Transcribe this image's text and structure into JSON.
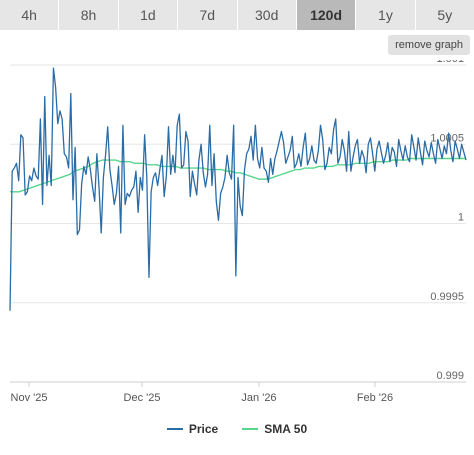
{
  "tabs": [
    {
      "label": "4h",
      "active": false
    },
    {
      "label": "8h",
      "active": false
    },
    {
      "label": "1d",
      "active": false
    },
    {
      "label": "7d",
      "active": false
    },
    {
      "label": "30d",
      "active": false
    },
    {
      "label": "120d",
      "active": true
    },
    {
      "label": "1y",
      "active": false
    },
    {
      "label": "5y",
      "active": false
    }
  ],
  "remove_graph_label": "remove graph",
  "legend": [
    {
      "label": "Price",
      "color": "#2a6ca6"
    },
    {
      "label": "SMA 50",
      "color": "#58d68d"
    }
  ],
  "chart_data": {
    "type": "line",
    "x_tick_labels": [
      "Nov '25",
      "Dec '25",
      "Jan '26",
      "Feb '26"
    ],
    "y_tick_labels": [
      "1.001",
      "1.0005",
      "1",
      "0.9995",
      "0.999"
    ],
    "y_ticks": [
      1.001,
      1.0005,
      1.0,
      0.9995,
      0.999
    ],
    "ylim": [
      0.999,
      1.001
    ],
    "grid": true,
    "legend_position": "bottom",
    "series": [
      {
        "name": "Price",
        "color": "#2a6ca6",
        "values": [
          0.99945,
          1.00033,
          1.00035,
          1.00038,
          1.00027,
          1.00056,
          1.00054,
          1.00018,
          1.0002,
          1.0003,
          1.00027,
          1.00035,
          1.0003,
          1.00028,
          1.00066,
          1.00012,
          1.0008,
          1.00024,
          1.00043,
          1.00024,
          1.00098,
          1.00086,
          1.00063,
          1.00071,
          1.00066,
          1.00044,
          1.00042,
          1.00035,
          1.00082,
          1.00015,
          1.00048,
          0.99993,
          0.99996,
          1.00025,
          1.00036,
          1.00031,
          1.00042,
          1.00034,
          1.00023,
          1.00014,
          1.00044,
          1.00023,
          0.99994,
          1.00029,
          1.00043,
          1.00061,
          1.00034,
          1.00024,
          1.00012,
          1.00019,
          1.00036,
          0.99994,
          1.00062,
          1.00012,
          1.00019,
          1.00017,
          1.00021,
          1.00023,
          1.00033,
          1.00007,
          1.00029,
          1.00021,
          1.00056,
          1.00029,
          0.99966,
          1.0002,
          1.00029,
          1.00032,
          1.00024,
          1.00034,
          1.00043,
          1.00017,
          1.0003,
          1.00061,
          1.00031,
          1.00043,
          1.00032,
          1.00062,
          1.00069,
          1.00035,
          1.00037,
          1.00058,
          1.00052,
          1.00017,
          1.00033,
          1.00025,
          1.00018,
          1.0004,
          1.0005,
          1.00032,
          1.00023,
          1.00031,
          1.00062,
          1.00024,
          1.00044,
          1.00014,
          1.00002,
          1.00019,
          1.00023,
          1.00029,
          1.00043,
          1.00032,
          1.00028,
          1.00062,
          0.99967,
          1.00029,
          1.00011,
          1.00005,
          1.00034,
          1.00044,
          1.00047,
          1.00055,
          1.0004,
          1.00062,
          1.00041,
          1.00035,
          1.00048,
          1.00035,
          1.00033,
          1.00026,
          1.00041,
          1.00031,
          1.00041,
          1.00046,
          1.00052,
          1.00058,
          1.00051,
          1.00038,
          1.00042,
          1.00046,
          1.00055,
          1.00035,
          1.00038,
          1.00044,
          1.00036,
          1.00048,
          1.00057,
          1.00037,
          1.00041,
          1.00049,
          1.0004,
          1.00038,
          1.00046,
          1.00062,
          1.00053,
          1.00034,
          1.00038,
          1.00048,
          1.00044,
          1.00059,
          1.00066,
          1.00038,
          1.00042,
          1.00053,
          1.00046,
          1.00033,
          1.00058,
          1.00033,
          1.00042,
          1.00049,
          1.00053,
          1.00038,
          1.00046,
          1.00042,
          1.00032,
          1.0005,
          1.00054,
          1.00044,
          1.00033,
          1.00047,
          1.00052,
          1.00045,
          1.00038,
          1.00043,
          1.00051,
          1.00039,
          1.00048,
          1.00045,
          1.00036,
          1.00053,
          1.00046,
          1.0004,
          1.00049,
          1.00042,
          1.00039,
          1.00056,
          1.00048,
          1.0004,
          1.00054,
          1.00045,
          1.00037,
          1.00052,
          1.00046,
          1.00042,
          1.00051,
          1.00044,
          1.00038,
          1.00053,
          1.00047,
          1.00041,
          1.00049,
          1.00044,
          1.00057,
          1.00046,
          1.00039,
          1.00052,
          1.00047,
          1.00041,
          1.0005,
          1.00045,
          1.0004
        ]
      },
      {
        "name": "SMA 50",
        "color": "#58d68d",
        "values": [
          1.0002,
          1.0002,
          1.0002,
          1.00021,
          1.00022,
          1.00023,
          1.00024,
          1.00025,
          1.00026,
          1.00027,
          1.00028,
          1.00029,
          1.0003,
          1.00031,
          1.00033,
          1.00034,
          1.00035,
          1.00036,
          1.00038,
          1.00039,
          1.0004,
          1.0004,
          1.0004,
          1.0004,
          1.00039,
          1.00039,
          1.00039,
          1.00038,
          1.00038,
          1.00038,
          1.00037,
          1.00037,
          1.00037,
          1.00036,
          1.00036,
          1.00036,
          1.00036,
          1.00035,
          1.00035,
          1.00035,
          1.00035,
          1.00035,
          1.00035,
          1.00034,
          1.00034,
          1.00034,
          1.00034,
          1.00033,
          1.00033,
          1.00032,
          1.00032,
          1.00031,
          1.0003,
          1.00029,
          1.00028,
          1.00028,
          1.00028,
          1.00029,
          1.0003,
          1.00031,
          1.00032,
          1.00033,
          1.00034,
          1.00034,
          1.00035,
          1.00035,
          1.00035,
          1.00036,
          1.00036,
          1.00036,
          1.00036,
          1.00037,
          1.00037,
          1.00037,
          1.00037,
          1.00038,
          1.00038,
          1.00038,
          1.00038,
          1.00039,
          1.00039,
          1.00039,
          1.00039,
          1.0004,
          1.0004,
          1.0004,
          1.0004,
          1.00041,
          1.00041,
          1.00041,
          1.00041,
          1.00041,
          1.00041,
          1.00041,
          1.00041,
          1.00041,
          1.00041,
          1.00041,
          1.00041,
          1.00041
        ]
      }
    ]
  }
}
